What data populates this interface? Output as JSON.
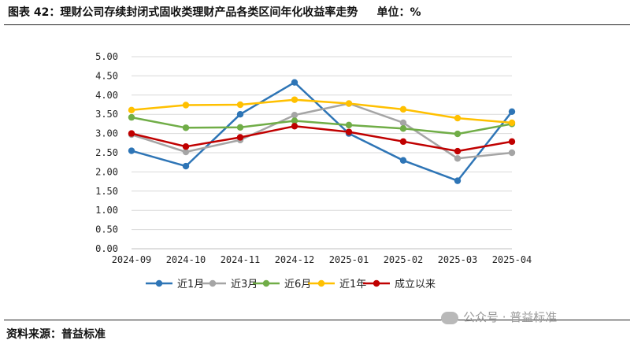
{
  "header": {
    "title": "图表 42：理财公司存续封闭式固收类理财产品各类区间年化收益率走势",
    "unit": "单位：%"
  },
  "footer": {
    "source": "资料来源：普益标准",
    "watermark": "公众号 · 普益标准"
  },
  "chart_data": {
    "type": "line",
    "categories": [
      "2024-09",
      "2024-10",
      "2024-11",
      "2024-12",
      "2025-01",
      "2025-02",
      "2025-03",
      "2025-04"
    ],
    "ylim": [
      0,
      5
    ],
    "yticks": [
      "0.00",
      "0.50",
      "1.00",
      "1.50",
      "2.00",
      "2.50",
      "3.00",
      "3.50",
      "4.00",
      "4.50",
      "5.00"
    ],
    "grid": true,
    "legend_position": "bottom",
    "series": [
      {
        "name": "近1月",
        "color": "#2E75B6",
        "values": [
          2.55,
          2.15,
          3.5,
          4.33,
          3.0,
          2.3,
          1.77,
          3.57
        ]
      },
      {
        "name": "近3月",
        "color": "#A5A5A5",
        "values": [
          2.97,
          2.52,
          2.83,
          3.48,
          3.78,
          3.28,
          2.35,
          2.5
        ]
      },
      {
        "name": "近6月",
        "color": "#70AD47",
        "values": [
          3.42,
          3.15,
          3.16,
          3.33,
          3.22,
          3.13,
          2.99,
          3.25
        ]
      },
      {
        "name": "近1年",
        "color": "#FFC000",
        "values": [
          3.61,
          3.74,
          3.75,
          3.88,
          3.78,
          3.63,
          3.4,
          3.28
        ]
      },
      {
        "name": "成立以来",
        "color": "#C00000",
        "values": [
          3.0,
          2.66,
          2.9,
          3.19,
          3.04,
          2.79,
          2.54,
          2.79
        ]
      }
    ]
  }
}
